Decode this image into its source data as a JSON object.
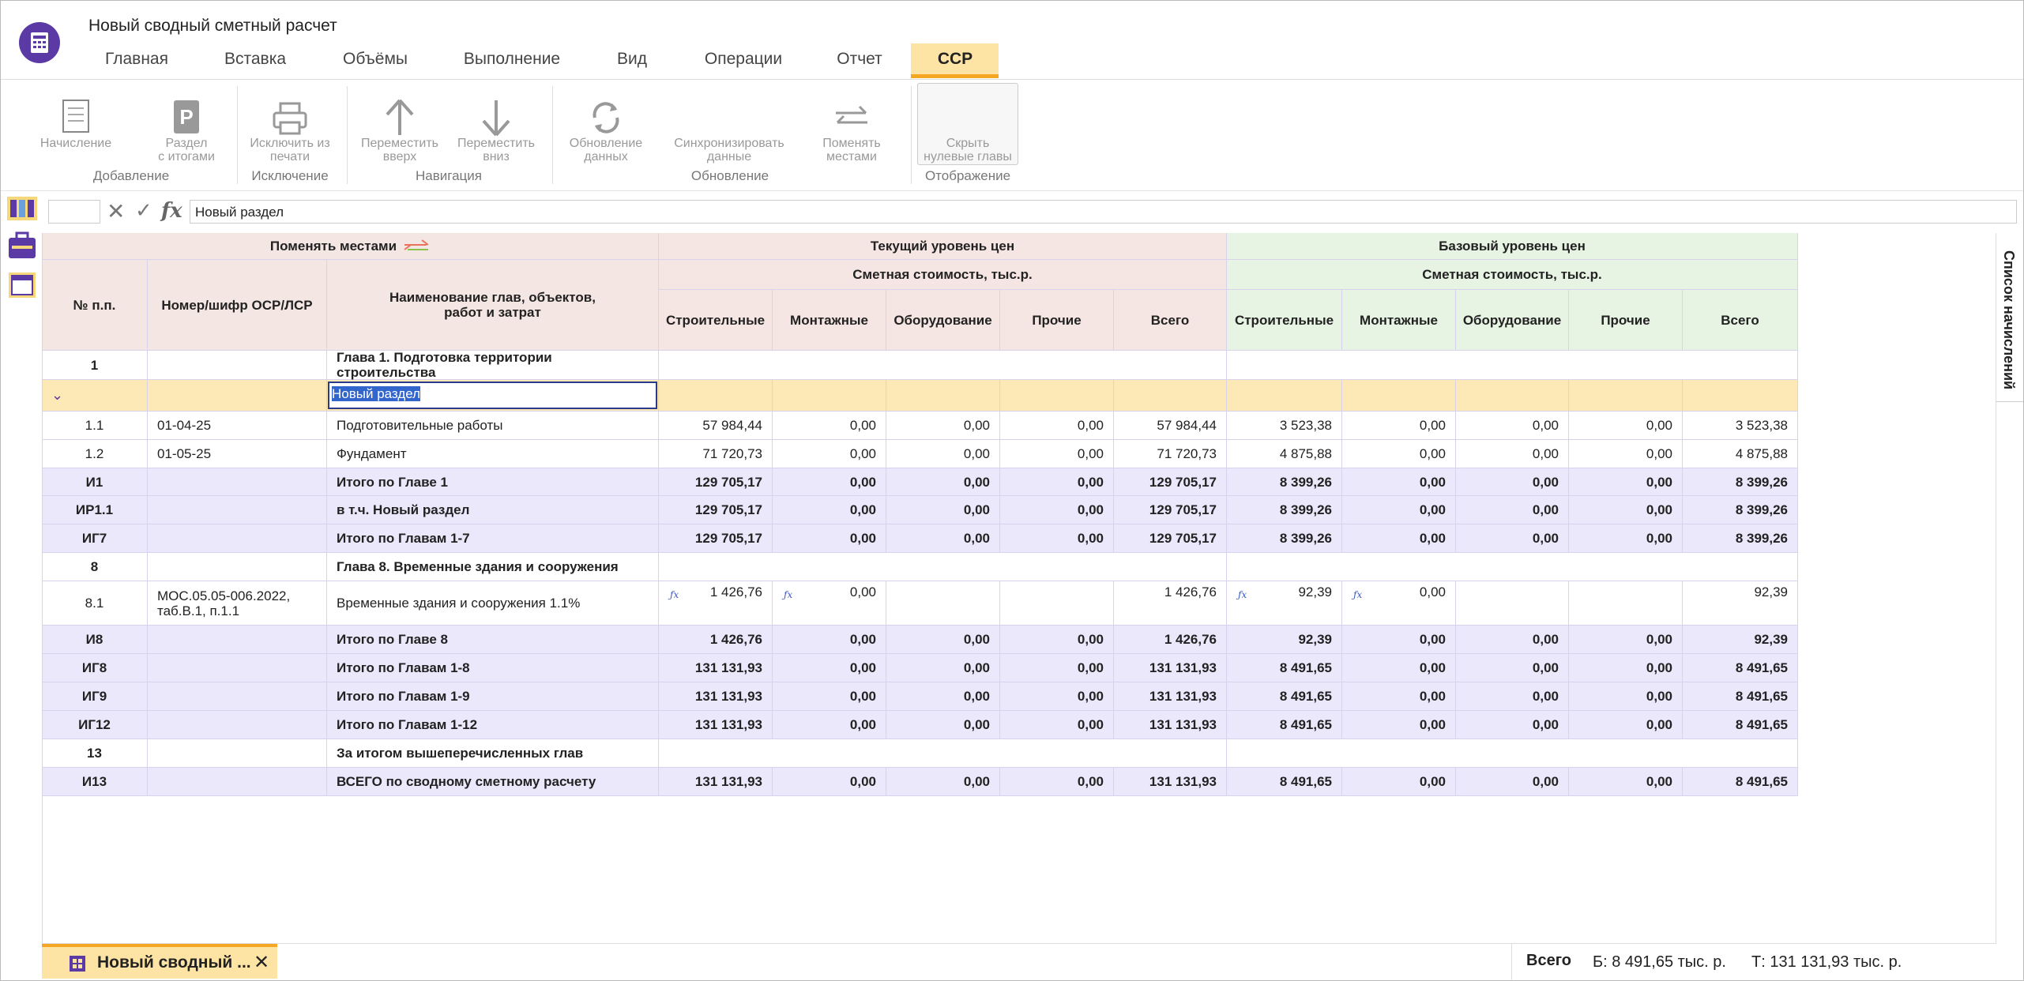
{
  "app": {
    "title": "Новый сводный сметный расчет",
    "tabs": [
      "Главная",
      "Вставка",
      "Объёмы",
      "Выполнение",
      "Вид",
      "Операции",
      "Отчет",
      "ССР"
    ]
  },
  "ribbon": {
    "groups": [
      {
        "label": "Добавление",
        "buttons": [
          "Начисление",
          "Раздел\nс итогами"
        ]
      },
      {
        "label": "Исключение",
        "buttons": [
          "Исключить из\nпечати"
        ]
      },
      {
        "label": "Навигация",
        "buttons": [
          "Переместить\nвверх",
          "Переместить\nвниз"
        ]
      },
      {
        "label": "Обновление",
        "buttons": [
          "Обновление\nданных",
          "Синхронизировать\nданные",
          "Поменять\nместами"
        ]
      },
      {
        "label": "Отображение",
        "buttons": [
          "Скрыть\nнулевые главы"
        ]
      }
    ]
  },
  "formula_bar": {
    "value": "Новый раздел"
  },
  "table": {
    "swap_label": "Поменять местами",
    "columns": {
      "num": "№ п.п.",
      "code": "Номер/шифр ОСР/ЛСР",
      "name": "Наименование глав, объектов,\nработ и затрат"
    },
    "groups": [
      {
        "title": "Текущий уровень цен",
        "subtitle": "Сметная стоимость, тыс.р.",
        "columns": [
          "Строительные",
          "Монтажные",
          "Оборудование",
          "Прочие",
          "Всего"
        ]
      },
      {
        "title": "Базовый уровень цен",
        "subtitle": "Сметная стоимость, тыс.р.",
        "columns": [
          "Строительные",
          "Монтажные",
          "Оборудование",
          "Прочие",
          "Всего"
        ]
      }
    ],
    "rows": [
      {
        "num": "1",
        "name": "Глава 1. Подготовка территории строительства"
      },
      {
        "name": "Новый раздел"
      },
      {
        "num": "1.1",
        "code": "01-04-25",
        "name": "Подготовительные работы",
        "current": [
          "57 984,44",
          "0,00",
          "0,00",
          "0,00",
          "57 984,44"
        ],
        "base": [
          "3 523,38",
          "0,00",
          "0,00",
          "0,00",
          "3 523,38"
        ]
      },
      {
        "num": "1.2",
        "code": "01-05-25",
        "name": "Фундамент",
        "current": [
          "71 720,73",
          "0,00",
          "0,00",
          "0,00",
          "71 720,73"
        ],
        "base": [
          "4 875,88",
          "0,00",
          "0,00",
          "0,00",
          "4 875,88"
        ]
      },
      {
        "num": "И1",
        "name": "Итого по Главе 1",
        "current": [
          "129 705,17",
          "0,00",
          "0,00",
          "0,00",
          "129 705,17"
        ],
        "base": [
          "8 399,26",
          "0,00",
          "0,00",
          "0,00",
          "8 399,26"
        ]
      },
      {
        "num": "ИР1.1",
        "name": "в т.ч. Новый раздел",
        "current": [
          "129 705,17",
          "0,00",
          "0,00",
          "0,00",
          "129 705,17"
        ],
        "base": [
          "8 399,26",
          "0,00",
          "0,00",
          "0,00",
          "8 399,26"
        ]
      },
      {
        "num": "ИГ7",
        "name": "Итого по Главам 1-7",
        "current": [
          "129 705,17",
          "0,00",
          "0,00",
          "0,00",
          "129 705,17"
        ],
        "base": [
          "8 399,26",
          "0,00",
          "0,00",
          "0,00",
          "8 399,26"
        ]
      },
      {
        "num": "8",
        "name": "Глава 8. Временные здания и сооружения"
      },
      {
        "num": "8.1",
        "code": "МОС.05.05-006.2022,\nтаб.В.1, п.1.1",
        "name": "Временные здания и сооружения 1.1%",
        "current": [
          "1 426,76",
          "0,00",
          null,
          null,
          "1 426,76"
        ],
        "base": [
          "92,39",
          "0,00",
          null,
          null,
          "92,39"
        ],
        "formula": true
      },
      {
        "num": "И8",
        "name": "Итого по Главе 8",
        "current": [
          "1 426,76",
          "0,00",
          "0,00",
          "0,00",
          "1 426,76"
        ],
        "base": [
          "92,39",
          "0,00",
          "0,00",
          "0,00",
          "92,39"
        ]
      },
      {
        "num": "ИГ8",
        "name": "Итого по Главам 1-8",
        "current": [
          "131 131,93",
          "0,00",
          "0,00",
          "0,00",
          "131 131,93"
        ],
        "base": [
          "8 491,65",
          "0,00",
          "0,00",
          "0,00",
          "8 491,65"
        ]
      },
      {
        "num": "ИГ9",
        "name": "Итого по Главам 1-9",
        "current": [
          "131 131,93",
          "0,00",
          "0,00",
          "0,00",
          "131 131,93"
        ],
        "base": [
          "8 491,65",
          "0,00",
          "0,00",
          "0,00",
          "8 491,65"
        ]
      },
      {
        "num": "ИГ12",
        "name": "Итого по Главам 1-12",
        "current": [
          "131 131,93",
          "0,00",
          "0,00",
          "0,00",
          "131 131,93"
        ],
        "base": [
          "8 491,65",
          "0,00",
          "0,00",
          "0,00",
          "8 491,65"
        ]
      },
      {
        "num": "13",
        "name": "За итогом вышеперечисленных глав"
      },
      {
        "num": "И13",
        "name": "ВСЕГО по сводному сметному расчету",
        "current": [
          "131 131,93",
          "0,00",
          "0,00",
          "0,00",
          "131 131,93"
        ],
        "base": [
          "8 491,65",
          "0,00",
          "0,00",
          "0,00",
          "8 491,65"
        ]
      }
    ]
  },
  "side_panel": {
    "title": "Список начислений"
  },
  "document_tab": {
    "title": "Новый сводный ..."
  },
  "status": {
    "label": "Всего",
    "base": "Б: 8 491,65 тыс. р.",
    "current": "Т: 131 131,93 тыс. р."
  }
}
